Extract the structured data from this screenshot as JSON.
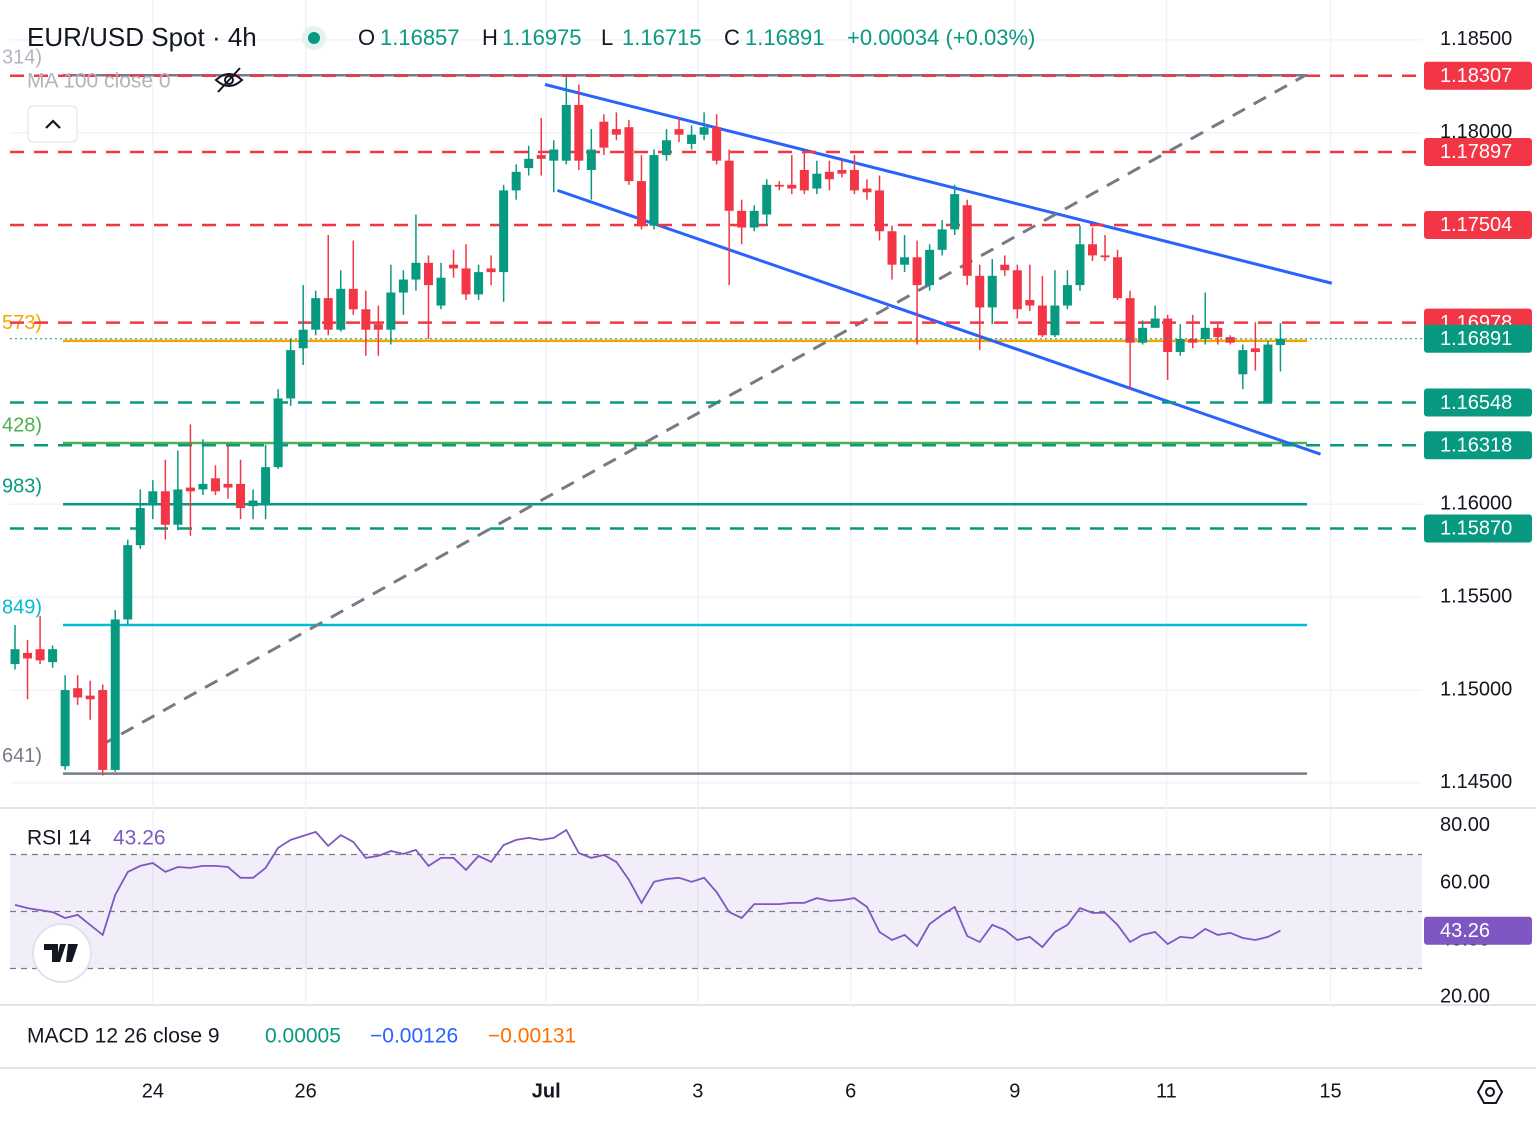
{
  "chart_data": [
    {
      "type": "candlestick",
      "title": "EUR/USD Spot · 4h",
      "ohlc_labels": [
        "O",
        "H",
        "L",
        "C"
      ],
      "change": "+0.00034 (+0.03%)",
      "indicator": "MA 100 close 0",
      "up_color": "#089981",
      "down_color": "#f23645",
      "open": [
        1.1514,
        1.152,
        1.1522,
        1.1515,
        1.1459,
        1.1501,
        1.1497,
        1.15,
        1.1457,
        1.1538,
        1.1578,
        1.16,
        1.1607,
        1.1589,
        1.1609,
        1.1608,
        1.1614,
        1.1611,
        1.1611,
        1.1599,
        1.16,
        1.162,
        1.1657,
        1.1684,
        1.1694,
        1.1711,
        1.1694,
        1.1716,
        1.1705,
        1.1697,
        1.1694,
        1.1714,
        1.1721,
        1.173,
        1.1707,
        1.1729,
        1.1727,
        1.1713,
        1.1727,
        1.1725,
        1.1769,
        1.1781,
        1.1788,
        1.1785,
        1.1785,
        1.1815,
        1.178,
        1.1806,
        1.1802,
        1.1803,
        1.1774,
        1.175,
        1.1788,
        1.1802,
        1.1794,
        1.1799,
        1.1803,
        1.1785,
        1.1758,
        1.1749,
        1.1756,
        1.1772,
        1.1772,
        1.178,
        1.177,
        1.1779,
        1.178,
        1.178,
        1.177,
        1.1769,
        1.1747,
        1.1729,
        1.1733,
        1.1718,
        1.1737,
        1.1748,
        1.1761,
        1.1723,
        1.1706,
        1.1729,
        1.1726,
        1.171,
        1.1707,
        1.1691,
        1.1707,
        1.1718,
        1.174,
        1.1734,
        1.1733,
        1.1711,
        1.1687,
        1.1695,
        1.17,
        1.1682,
        1.1689,
        1.1689,
        1.1695,
        1.169,
        1.167,
        1.1684,
        1.1655,
        1.16857
      ],
      "high": [
        1.1535,
        1.1527,
        1.154,
        1.1524,
        1.1508,
        1.1508,
        1.1505,
        1.1503,
        1.1543,
        1.1581,
        1.1608,
        1.1613,
        1.1624,
        1.1629,
        1.1643,
        1.1635,
        1.1621,
        1.1632,
        1.1624,
        1.1608,
        1.1632,
        1.1662,
        1.1689,
        1.1718,
        1.1715,
        1.1745,
        1.1726,
        1.1742,
        1.1715,
        1.1707,
        1.1729,
        1.1726,
        1.1756,
        1.1734,
        1.173,
        1.1737,
        1.174,
        1.1729,
        1.1734,
        1.1772,
        1.1783,
        1.1793,
        1.1808,
        1.1796,
        1.183,
        1.1826,
        1.1802,
        1.181,
        1.1811,
        1.1807,
        1.1788,
        1.1791,
        1.1802,
        1.1808,
        1.1804,
        1.1811,
        1.181,
        1.1791,
        1.1764,
        1.1761,
        1.1775,
        1.1774,
        1.1788,
        1.179,
        1.1785,
        1.1785,
        1.1785,
        1.1788,
        1.1775,
        1.1777,
        1.175,
        1.1745,
        1.1742,
        1.174,
        1.1753,
        1.1772,
        1.1764,
        1.1729,
        1.1732,
        1.1734,
        1.1729,
        1.1729,
        1.1723,
        1.1726,
        1.1726,
        1.175,
        1.1749,
        1.1745,
        1.1737,
        1.1715,
        1.1699,
        1.1707,
        1.1702,
        1.1697,
        1.1702,
        1.1714,
        1.1698,
        1.1691,
        1.1686,
        1.1698,
        1.1688,
        1.16975
      ],
      "low": [
        1.1511,
        1.1495,
        1.1514,
        1.1512,
        1.1457,
        1.1492,
        1.1484,
        1.1454,
        1.1456,
        1.1535,
        1.1576,
        1.1592,
        1.1581,
        1.1586,
        1.1583,
        1.1605,
        1.1605,
        1.1603,
        1.1592,
        1.1592,
        1.1592,
        1.1619,
        1.1653,
        1.1675,
        1.1691,
        1.1691,
        1.1693,
        1.1702,
        1.168,
        1.168,
        1.1686,
        1.1702,
        1.1715,
        1.1689,
        1.1705,
        1.1722,
        1.171,
        1.171,
        1.1718,
        1.1709,
        1.1764,
        1.1777,
        1.1777,
        1.1768,
        1.1783,
        1.178,
        1.1764,
        1.1788,
        1.1796,
        1.1772,
        1.1748,
        1.1748,
        1.1785,
        1.1795,
        1.1791,
        1.1796,
        1.1783,
        1.1718,
        1.174,
        1.1747,
        1.175,
        1.1769,
        1.1767,
        1.1767,
        1.1767,
        1.1769,
        1.1776,
        1.1767,
        1.1764,
        1.1742,
        1.1721,
        1.1725,
        1.1686,
        1.1715,
        1.1734,
        1.1745,
        1.1718,
        1.1683,
        1.1697,
        1.1723,
        1.17,
        1.1704,
        1.169,
        1.169,
        1.1705,
        1.1715,
        1.1731,
        1.1731,
        1.171,
        1.1662,
        1.1686,
        1.1695,
        1.1667,
        1.168,
        1.1684,
        1.1686,
        1.1686,
        1.1686,
        1.1662,
        1.1672,
        1.1655,
        1.16715
      ],
      "close": [
        1.1522,
        1.1517,
        1.1516,
        1.1522,
        1.15,
        1.1496,
        1.1495,
        1.1457,
        1.1538,
        1.1578,
        1.1598,
        1.1607,
        1.1589,
        1.1608,
        1.1607,
        1.1611,
        1.1607,
        1.1609,
        1.1598,
        1.1602,
        1.162,
        1.1657,
        1.1683,
        1.1694,
        1.1711,
        1.1694,
        1.1716,
        1.1705,
        1.1694,
        1.1694,
        1.1714,
        1.1721,
        1.173,
        1.1718,
        1.1722,
        1.1727,
        1.1713,
        1.1725,
        1.1725,
        1.1769,
        1.1779,
        1.1786,
        1.1786,
        1.1791,
        1.1815,
        1.1785,
        1.1791,
        1.1792,
        1.1799,
        1.1774,
        1.175,
        1.1788,
        1.1796,
        1.1799,
        1.1799,
        1.1803,
        1.1785,
        1.1758,
        1.1749,
        1.1758,
        1.1772,
        1.1771,
        1.177,
        1.1769,
        1.1778,
        1.1775,
        1.1778,
        1.1769,
        1.1768,
        1.1747,
        1.1729,
        1.1733,
        1.1718,
        1.1737,
        1.1748,
        1.1767,
        1.1723,
        1.1706,
        1.1723,
        1.1726,
        1.1705,
        1.1707,
        1.1691,
        1.1707,
        1.1718,
        1.174,
        1.1734,
        1.1733,
        1.1711,
        1.1687,
        1.1695,
        1.17,
        1.1682,
        1.1689,
        1.1687,
        1.1695,
        1.169,
        1.1687,
        1.1683,
        1.1682,
        1.1686,
        1.16891
      ],
      "xlim": [
        -0.4,
        112.3
      ],
      "xticks": [
        {
          "value": 11,
          "label": "24"
        },
        {
          "value": 23.2,
          "label": "26"
        },
        {
          "value": 42.4,
          "label": "Jul"
        },
        {
          "value": 54.5,
          "label": "3"
        },
        {
          "value": 66.7,
          "label": "6"
        },
        {
          "value": 79.8,
          "label": "9"
        },
        {
          "value": 91.9,
          "label": "11"
        },
        {
          "value": 105,
          "label": "15"
        }
      ],
      "ylim": [
        1.14365,
        1.18715
      ],
      "yticks": [
        {
          "value": 1.185,
          "label": "1.18500"
        },
        {
          "value": 1.18,
          "label": "1.18000"
        },
        {
          "value": 1.16,
          "label": "1.16000"
        },
        {
          "value": 1.155,
          "label": "1.15500"
        },
        {
          "value": 1.15,
          "label": "1.15000"
        },
        {
          "value": 1.145,
          "label": "1.14500"
        }
      ],
      "grid": true,
      "levels": [
        {
          "value": 1.18307,
          "label": "1.18307",
          "color": "#f23645"
        },
        {
          "value": 1.17897,
          "label": "1.17897",
          "color": "#f23645"
        },
        {
          "value": 1.17504,
          "label": "1.17504",
          "color": "#f23645"
        },
        {
          "value": 1.16978,
          "label": "1.16978",
          "color": "#f23645"
        },
        {
          "value": 1.16548,
          "label": "1.16548",
          "color": "#089981"
        },
        {
          "value": 1.16318,
          "label": "1.16318",
          "color": "#089981"
        },
        {
          "value": 1.1587,
          "label": "1.15870",
          "color": "#089981"
        }
      ],
      "hlines": [
        {
          "value": 1.1831,
          "label": "314)",
          "color": "#787b86",
          "label_color": "#b2b5be"
        },
        {
          "value": 1.1688,
          "label": "573)",
          "color": "#f7a600",
          "label_color": "#f7a600"
        },
        {
          "value": 1.1633,
          "label": "428)",
          "color": "#4caf50",
          "label_color": "#4caf50"
        },
        {
          "value": 1.16,
          "label": "983)",
          "color": "#089981",
          "label_color": "#089981"
        },
        {
          "value": 1.1535,
          "label": "849)",
          "color": "#00bcd4",
          "label_color": "#00bcd4"
        },
        {
          "value": 1.1455,
          "label": "641)",
          "color": "#787b86",
          "label_color": "#787b86"
        }
      ],
      "trendlines": [
        {
          "x": [
            42.3,
            105.1
          ],
          "y": [
            1.1826,
            1.1719
          ],
          "color": "#2962ff",
          "dashed": false
        },
        {
          "x": [
            43.3,
            104.2
          ],
          "y": [
            1.1769,
            1.1627
          ],
          "color": "#2962ff",
          "dashed": false
        },
        {
          "x": [
            6.8,
            103
          ],
          "y": [
            1.147,
            1.1831
          ],
          "color": "#787b86",
          "dashed": true
        }
      ]
    },
    {
      "type": "line",
      "title": "RSI 14",
      "color": "#7e57c2",
      "values": [
        52.3,
        51.2,
        50.5,
        49.8,
        47.7,
        48.8,
        45.3,
        41.8,
        55.8,
        63.9,
        66,
        67,
        63.9,
        65.6,
        65.3,
        66,
        66,
        65.6,
        61.8,
        61.8,
        65.3,
        72.3,
        75.1,
        76.5,
        77.9,
        73,
        76.8,
        74.4,
        68.8,
        69.5,
        71.2,
        70.2,
        71.6,
        66,
        68.8,
        68.8,
        64.6,
        69.5,
        67.4,
        73.3,
        75.1,
        75.8,
        75.1,
        75.8,
        78.6,
        70.5,
        68.8,
        69.8,
        67.4,
        61.1,
        53,
        60.4,
        61.4,
        61.8,
        60.4,
        61.8,
        56.8,
        49.8,
        47.7,
        52.6,
        52.6,
        52.6,
        53,
        53,
        54.7,
        53.7,
        54,
        54.7,
        51.6,
        42.8,
        40,
        41.8,
        37.9,
        45.6,
        48.8,
        51.6,
        41.4,
        39.3,
        45.3,
        43.5,
        40,
        41.1,
        37.5,
        42.8,
        45.3,
        51.2,
        49.5,
        49.5,
        45.3,
        39.3,
        41.8,
        42.8,
        38.6,
        41.1,
        40.7,
        43.9,
        41.8,
        42.5,
        40.7,
        40,
        41.1,
        43.26
      ],
      "ylim": [
        17.2,
        86.3
      ],
      "yticks": [
        {
          "value": 80,
          "label": "80.00"
        },
        {
          "value": 60,
          "label": "60.00"
        },
        {
          "value": 40,
          "label": "40.00"
        },
        {
          "value": 20,
          "label": "20.00"
        }
      ],
      "levels": [
        70,
        50,
        30
      ]
    },
    {
      "type": "macd",
      "title": "MACD 12 26 close 9",
      "readouts": [
        {
          "text": "0.00005",
          "color": "#089981"
        },
        {
          "text": "−0.00126",
          "color": "#2962ff"
        },
        {
          "text": "−0.00131",
          "color": "#ff6d00"
        }
      ]
    }
  ]
}
